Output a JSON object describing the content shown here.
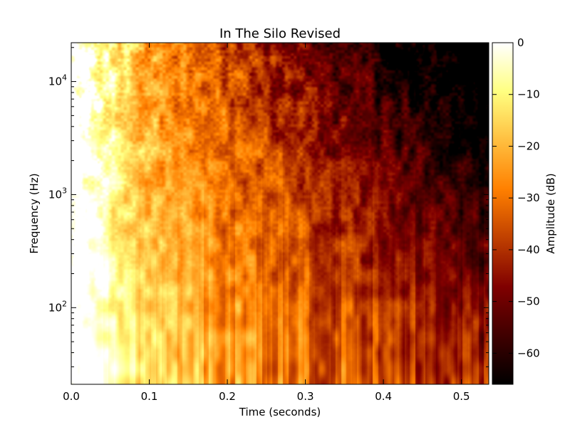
{
  "chart_data": {
    "type": "heatmap",
    "title": "In The Silo Revised",
    "xlabel": "Time (seconds)",
    "ylabel": "Frequency (Hz)",
    "colorbar_label": "Amplitude (dB)",
    "xlim": [
      0.0,
      0.535
    ],
    "ylim": [
      21,
      22050
    ],
    "yscale": "log",
    "x_ticks": [
      0.0,
      0.1,
      0.2,
      0.3,
      0.4,
      0.5
    ],
    "x_tick_labels": [
      "0.0",
      "0.1",
      "0.2",
      "0.3",
      "0.4",
      "0.5"
    ],
    "y_ticks": [
      100,
      1000,
      10000
    ],
    "y_tick_base": "10",
    "y_tick_exponents": [
      "2",
      "3",
      "4"
    ],
    "colorbar_range": [
      -66,
      0
    ],
    "colorbar_ticks": [
      0,
      -10,
      -20,
      -30,
      -40,
      -50,
      -60
    ],
    "colorbar_tick_labels": [
      "0",
      "−10",
      "−20",
      "−30",
      "−40",
      "−50",
      "−60"
    ],
    "colormap": "afmhot",
    "colormap_stops": [
      "#000000",
      "#400000",
      "#800000",
      "#c04000",
      "#ff8000",
      "#ffbf40",
      "#ffff80",
      "#ffffff"
    ],
    "grid": false
  }
}
